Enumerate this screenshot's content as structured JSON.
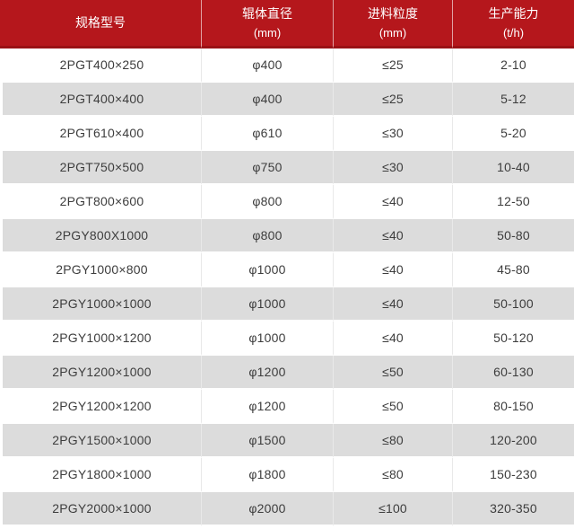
{
  "table": {
    "title": "roller-crusher-specification-table",
    "columns": [
      {
        "line1": "规格型号",
        "line2": ""
      },
      {
        "line1": "辊体直径",
        "line2": "(mm)"
      },
      {
        "line1": "进料粒度",
        "line2": "(mm)"
      },
      {
        "line1": "生产能力",
        "line2": "(t/h)"
      }
    ],
    "rows": [
      [
        "2PGT400×250",
        "φ400",
        "≤25",
        "2-10"
      ],
      [
        "2PGT400×400",
        "φ400",
        "≤25",
        "5-12"
      ],
      [
        "2PGT610×400",
        "φ610",
        "≤30",
        "5-20"
      ],
      [
        "2PGT750×500",
        "φ750",
        "≤30",
        "10-40"
      ],
      [
        "2PGT800×600",
        "φ800",
        "≤40",
        "12-50"
      ],
      [
        "2PGY800X1000",
        "φ800",
        "≤40",
        "50-80"
      ],
      [
        "2PGY1000×800",
        "φ1000",
        "≤40",
        "45-80"
      ],
      [
        "2PGY1000×1000",
        "φ1000",
        "≤40",
        "50-100"
      ],
      [
        "2PGY1000×1200",
        "φ1000",
        "≤40",
        "50-120"
      ],
      [
        "2PGY1200×1000",
        "φ1200",
        "≤50",
        "60-130"
      ],
      [
        "2PGY1200×1200",
        "φ1200",
        "≤50",
        "80-150"
      ],
      [
        "2PGY1500×1000",
        "φ1500",
        "≤80",
        "120-200"
      ],
      [
        "2PGY1800×1000",
        "φ1800",
        "≤80",
        "150-230"
      ],
      [
        "2PGY2000×1000",
        "φ2000",
        "≤100",
        "320-350"
      ]
    ],
    "column_keys": [
      "spec-model",
      "roller-diameter",
      "feed-size",
      "capacity"
    ]
  },
  "colors": {
    "header_bg": "#b5171c",
    "header_bottom_border": "#9a1115",
    "header_text": "#ffffff",
    "row_alt_bg": "#dcdcdc",
    "row_bg": "#ffffff",
    "cell_border": "#e9e9e9",
    "body_text": "#3d3d3d"
  }
}
